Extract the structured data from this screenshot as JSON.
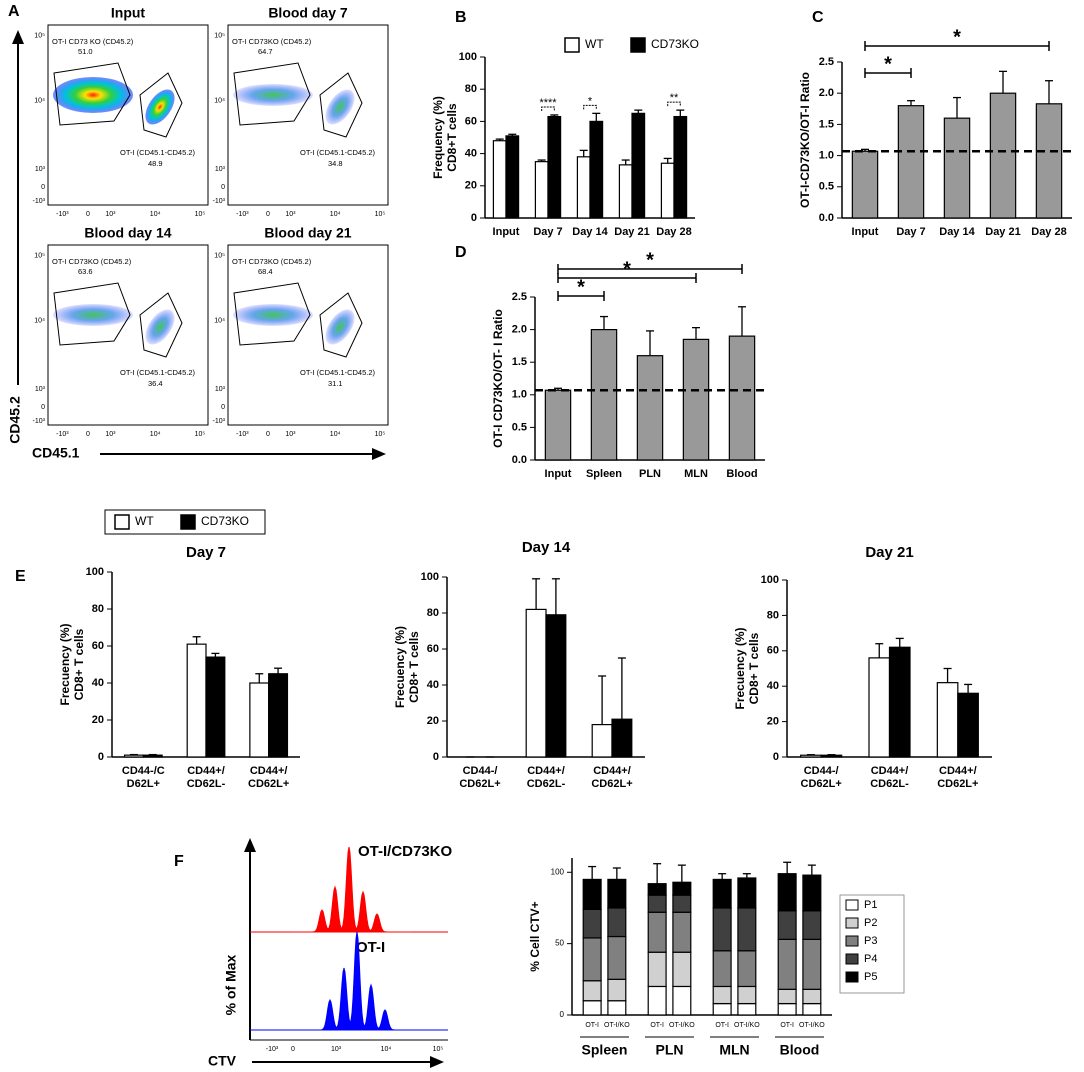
{
  "flow_plots": {
    "panel": "A",
    "ylabel": "CD45.2",
    "xlabel": "CD45.1",
    "xticks": [
      "-10³",
      "0",
      "10³",
      "10⁴",
      "10⁵"
    ],
    "yticks": [
      "10⁵",
      "10⁴",
      "10³",
      "0",
      "-10³"
    ],
    "plots": [
      {
        "title": "Input",
        "gates": [
          {
            "label": "OT-I CD73 KO (CD45.2)",
            "value": "51.0"
          },
          {
            "label": "OT-I (CD45.1-CD45.2)",
            "value": "48.9"
          }
        ]
      },
      {
        "title": "Blood day 7",
        "gates": [
          {
            "label": "OT-I CD73KO (CD45.2)",
            "value": "64.7"
          },
          {
            "label": "OT-I (CD45.1-CD45.2)",
            "value": "34.8"
          }
        ]
      },
      {
        "title": "Blood day 14",
        "gates": [
          {
            "label": "OT-I CD73KO (CD45.2)",
            "value": "63.6"
          },
          {
            "label": "OT-I (CD45.1-CD45.2)",
            "value": "36.4"
          }
        ]
      },
      {
        "title": "Blood day 21",
        "gates": [
          {
            "label": "OT-I CD73KO (CD45.2)",
            "value": "68.4"
          },
          {
            "label": "OT-I (CD45.1-CD45.2)",
            "value": "31.1"
          }
        ]
      }
    ]
  },
  "flow_histogram": {
    "panel": "F",
    "labels": [
      "OT-I/CD73KO",
      "OT-I"
    ],
    "ylabel": "% of Max",
    "xlabel": "CTV",
    "xticks": [
      "-10³",
      "0",
      "10³",
      "10⁴",
      "10⁵"
    ]
  },
  "chart_data": [
    {
      "type": "bar",
      "panel": "B",
      "ylabel": [
        "Frequency (%)",
        "CD8+T cells"
      ],
      "categories": [
        "Input",
        "Day 7",
        "Day 14",
        "Day 21",
        "Day 28"
      ],
      "series": [
        {
          "name": "WT",
          "color": "#ffffff",
          "values": [
            48,
            35,
            38,
            33,
            34
          ],
          "errors": [
            1,
            1,
            4,
            3,
            3
          ]
        },
        {
          "name": "CD73KO",
          "color": "#000000",
          "values": [
            51,
            63,
            60,
            65,
            63
          ],
          "errors": [
            1,
            1,
            5,
            2,
            4
          ]
        }
      ],
      "ylim": [
        0,
        100
      ],
      "yticks": [
        0,
        20,
        40,
        60,
        80,
        100
      ],
      "legend": "top",
      "annotations": [
        {
          "text": "****",
          "category": "Day 7"
        },
        {
          "text": "*",
          "category": "Day 14"
        },
        {
          "text": "**",
          "category": "Day 28"
        }
      ]
    },
    {
      "type": "bar",
      "panel": "C",
      "ylabel": [
        "OT-I-CD73KO/OT-I Ratio"
      ],
      "categories": [
        "Input",
        "Day 7",
        "Day 14",
        "Day 21",
        "Day 28"
      ],
      "values": [
        1.07,
        1.8,
        1.6,
        2.0,
        1.83
      ],
      "errors": [
        0.03,
        0.08,
        0.33,
        0.35,
        0.37
      ],
      "color": "#999999",
      "ylim": [
        0,
        2.5
      ],
      "yticks": [
        {
          "value": 0,
          "label": "0.0"
        },
        0.5,
        {
          "value": 1,
          "label": "1.0"
        },
        1.5,
        {
          "value": 2,
          "label": "2.0"
        },
        2.5
      ],
      "reference_line": 1.07,
      "annotations": [
        {
          "text": "*",
          "from": "Input",
          "to": "Day 7"
        },
        {
          "text": "*",
          "from": "Input",
          "to": "Day 28"
        }
      ]
    },
    {
      "type": "bar",
      "panel": "D",
      "ylabel": [
        "OT-I CD73KO/OT- I Ratio"
      ],
      "categories": [
        "Input",
        "Spleen",
        "PLN",
        "MLN",
        "Blood"
      ],
      "values": [
        1.07,
        2.0,
        1.6,
        1.85,
        1.9
      ],
      "errors": [
        0.03,
        0.2,
        0.38,
        0.18,
        0.45
      ],
      "color": "#999999",
      "ylim": [
        0,
        2.5
      ],
      "yticks": [
        {
          "value": 0,
          "label": "0.0"
        },
        0.5,
        {
          "value": 1,
          "label": "1.0"
        },
        1.5,
        {
          "value": 2,
          "label": "2.0"
        },
        2.5
      ],
      "reference_line": 1.07,
      "annotations": [
        {
          "text": "*",
          "from": "Input",
          "to": "Spleen"
        },
        {
          "text": "*",
          "from": "Input",
          "to": "MLN"
        },
        {
          "text": "*",
          "from": "Input",
          "to": "Blood"
        }
      ]
    },
    {
      "type": "bar",
      "panel": "E",
      "title": "Day 7",
      "ylabel": [
        "Frecuency (%)",
        "CD8+ T cells"
      ],
      "categories": [
        [
          "CD44-/C",
          "D62L+"
        ],
        [
          "CD44+/",
          "CD62L-"
        ],
        [
          "CD44+/",
          "CD62L+"
        ]
      ],
      "series": [
        {
          "name": "WT",
          "color": "#ffffff",
          "values": [
            1,
            61,
            40
          ],
          "errors": [
            0.3,
            4,
            5
          ]
        },
        {
          "name": "CD73KO",
          "color": "#000000",
          "values": [
            1,
            54,
            45
          ],
          "errors": [
            0.3,
            2,
            3
          ]
        }
      ],
      "ylim": [
        0,
        100
      ],
      "yticks": [
        0,
        20,
        40,
        60,
        80,
        100
      ],
      "legend": "top-left"
    },
    {
      "type": "bar",
      "title": "Day 14",
      "ylabel": [
        "Frecuency (%)",
        "CD8+ T cells"
      ],
      "categories": [
        [
          "CD44-/",
          "CD62L+"
        ],
        [
          "CD44+/",
          "CD62L-"
        ],
        [
          "CD44+/",
          "CD62L+"
        ]
      ],
      "series": [
        {
          "color": "#ffffff",
          "values": [
            0,
            82,
            18
          ],
          "errors": [
            0,
            17,
            27
          ]
        },
        {
          "color": "#000000",
          "values": [
            0,
            79,
            21
          ],
          "errors": [
            0,
            20,
            34
          ]
        }
      ],
      "ylim": [
        0,
        100
      ],
      "yticks": [
        0,
        20,
        40,
        60,
        80,
        100
      ]
    },
    {
      "type": "bar",
      "title": "Day 21",
      "ylabel": [
        "Frecuency (%)",
        "CD8+ T cells"
      ],
      "categories": [
        [
          "CD44-/",
          "CD62L+"
        ],
        [
          "CD44+/",
          "CD62L-"
        ],
        [
          "CD44+/",
          "CD62L+"
        ]
      ],
      "series": [
        {
          "color": "#ffffff",
          "values": [
            1,
            56,
            42
          ],
          "errors": [
            0.3,
            8,
            8
          ]
        },
        {
          "color": "#000000",
          "values": [
            1,
            62,
            36
          ],
          "errors": [
            0.3,
            5,
            5
          ]
        }
      ],
      "ylim": [
        0,
        100
      ],
      "yticks": [
        0,
        20,
        40,
        60,
        80,
        100
      ]
    },
    {
      "type": "stacked_bar",
      "ylabel": [
        "% Cell CTV+"
      ],
      "categories": [
        "OT-I",
        "OT-I/KO",
        "OT-I",
        "OT-I/KO",
        "OT-I",
        "OT-I/KO",
        "OT-I",
        "OT-I/KO"
      ],
      "groups": [
        "Spleen",
        "PLN",
        "MLN",
        "Blood"
      ],
      "series": [
        {
          "name": "P1",
          "color": "#ffffff",
          "values": [
            10,
            10,
            20,
            20,
            8,
            8,
            8,
            8
          ]
        },
        {
          "name": "P2",
          "color": "#d0d0d0",
          "values": [
            14,
            15,
            24,
            24,
            12,
            12,
            10,
            10
          ]
        },
        {
          "name": "P3",
          "color": "#808080",
          "values": [
            30,
            30,
            28,
            28,
            25,
            25,
            35,
            35
          ]
        },
        {
          "name": "P4",
          "color": "#404040",
          "values": [
            20,
            20,
            12,
            12,
            30,
            30,
            20,
            20
          ]
        },
        {
          "name": "P5",
          "color": "#000000",
          "values": [
            21,
            20,
            8,
            9,
            20,
            21,
            26,
            25
          ],
          "errors": [
            9,
            8,
            14,
            12,
            4,
            3,
            8,
            7
          ]
        }
      ],
      "ylim": [
        0,
        110
      ],
      "yticks": [
        0,
        50,
        100
      ],
      "legend": "right"
    }
  ]
}
